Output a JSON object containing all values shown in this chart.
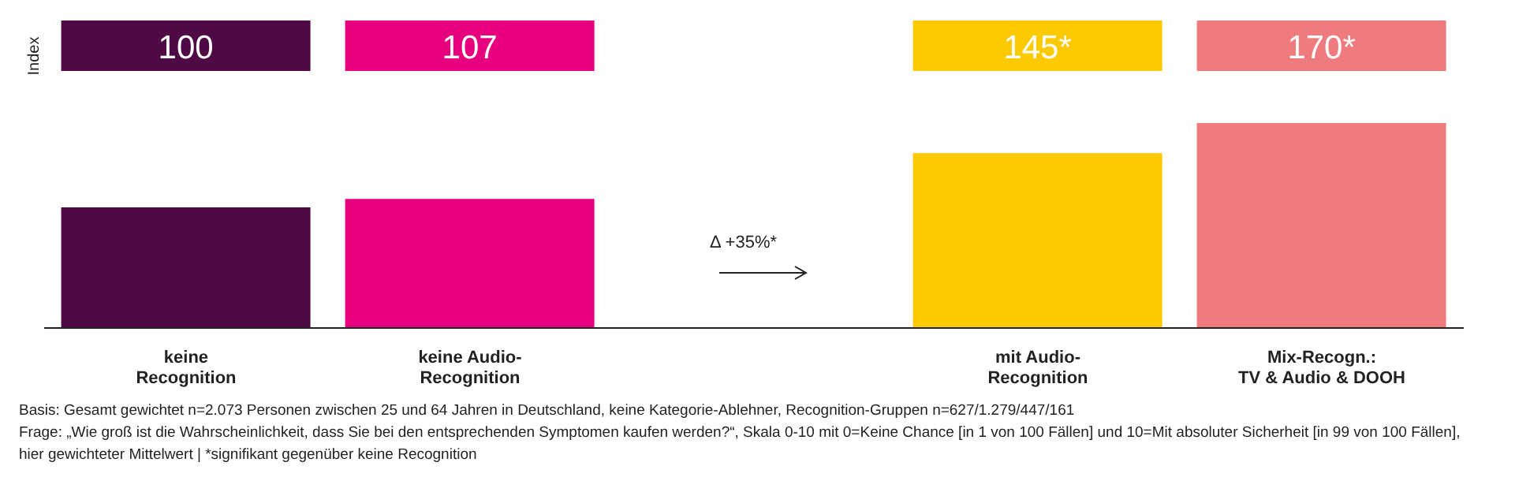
{
  "chart_data": {
    "type": "bar",
    "ylabel": "Index",
    "categories": [
      "keine\nRecognition",
      "keine Audio-\nRecognition",
      null,
      "mit Audio-\nRecognition",
      "Mix-Recogn.:\nTV & Audio & DOOH"
    ],
    "values": [
      100,
      107,
      null,
      145,
      170
    ],
    "colors": [
      "#4f0a45",
      "#e6007e",
      "#ffffff",
      "#fdc900",
      "#f07b7f"
    ],
    "value_labels": [
      "100",
      "107",
      null,
      "145*",
      "170*"
    ],
    "grid": false,
    "legend": false,
    "annotations": [
      "Δ +35%*",
      "Basis: Gesamt gewichtet n=2.073 Personen zwischen 25 und 64 Jahren in Deutschland, keine Kategorie-Ablehner, Recognition-Gruppen n=627/1.279/447/161",
      "Frage: „Wie groß ist die Wahrscheinlichkeit, dass Sie bei den entsprechenden Symptomen kaufen werden?“, Skala 0-10 mit 0=Keine Chance [in 1 von 100 Fällen] und 10=Mit absoluter Sicherheit [in 99 von 100 Fällen], hier gewichteter Mittelwert | *signifikant gegenüber keine Recognition"
    ]
  }
}
